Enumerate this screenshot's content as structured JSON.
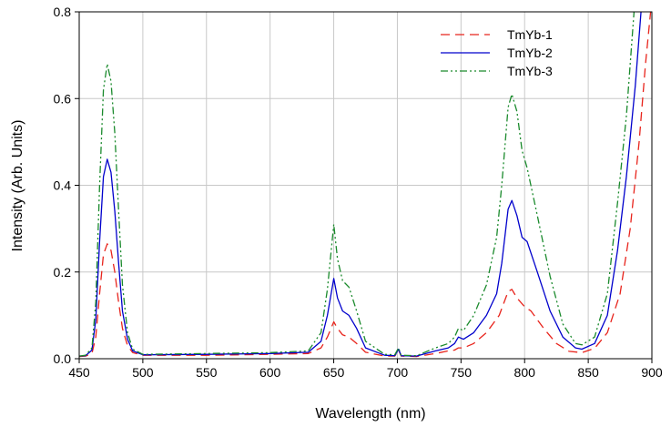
{
  "chart_data": {
    "type": "line",
    "xlabel": "Wavelength (nm)",
    "ylabel": "Intensity (Arb. Units)",
    "xlim": [
      450,
      900
    ],
    "ylim": [
      0,
      0.8
    ],
    "x_ticks": [
      450,
      500,
      550,
      600,
      650,
      700,
      750,
      800,
      850,
      900
    ],
    "y_ticks": [
      0.0,
      0.2,
      0.4,
      0.6,
      0.8
    ],
    "x_tick_labels": [
      "450",
      "500",
      "550",
      "600",
      "650",
      "700",
      "750",
      "800",
      "850",
      "900"
    ],
    "y_tick_labels": [
      "0.0",
      "0.2",
      "0.4",
      "0.6",
      "0.8"
    ],
    "grid": true,
    "legend_position": "top-right",
    "series": [
      {
        "name": "TmYb-1",
        "color": "#e8241c",
        "dash": "dashed",
        "points": [
          [
            450,
            0.005
          ],
          [
            455,
            0.006
          ],
          [
            460,
            0.012
          ],
          [
            463,
            0.05
          ],
          [
            466,
            0.15
          ],
          [
            469,
            0.24
          ],
          [
            472,
            0.265
          ],
          [
            475,
            0.25
          ],
          [
            478,
            0.2
          ],
          [
            481,
            0.13
          ],
          [
            484,
            0.07
          ],
          [
            488,
            0.03
          ],
          [
            492,
            0.014
          ],
          [
            500,
            0.008
          ],
          [
            550,
            0.008
          ],
          [
            600,
            0.01
          ],
          [
            630,
            0.012
          ],
          [
            640,
            0.025
          ],
          [
            645,
            0.05
          ],
          [
            650,
            0.085
          ],
          [
            653,
            0.07
          ],
          [
            657,
            0.055
          ],
          [
            662,
            0.05
          ],
          [
            668,
            0.035
          ],
          [
            675,
            0.015
          ],
          [
            690,
            0.006
          ],
          [
            698,
            0.006
          ],
          [
            701,
            0.02
          ],
          [
            703,
            0.006
          ],
          [
            715,
            0.005
          ],
          [
            730,
            0.012
          ],
          [
            740,
            0.018
          ],
          [
            745,
            0.02
          ],
          [
            748,
            0.025
          ],
          [
            752,
            0.025
          ],
          [
            760,
            0.035
          ],
          [
            770,
            0.06
          ],
          [
            780,
            0.1
          ],
          [
            787,
            0.155
          ],
          [
            790,
            0.16
          ],
          [
            794,
            0.14
          ],
          [
            800,
            0.12
          ],
          [
            805,
            0.11
          ],
          [
            815,
            0.07
          ],
          [
            825,
            0.035
          ],
          [
            835,
            0.017
          ],
          [
            845,
            0.014
          ],
          [
            855,
            0.024
          ],
          [
            865,
            0.06
          ],
          [
            875,
            0.15
          ],
          [
            883,
            0.3
          ],
          [
            890,
            0.5
          ],
          [
            895,
            0.68
          ],
          [
            900,
            0.83
          ]
        ]
      },
      {
        "name": "TmYb-2",
        "color": "#0000cc",
        "dash": "solid",
        "points": [
          [
            450,
            0.006
          ],
          [
            455,
            0.007
          ],
          [
            460,
            0.02
          ],
          [
            463,
            0.09
          ],
          [
            466,
            0.27
          ],
          [
            469,
            0.42
          ],
          [
            472,
            0.46
          ],
          [
            475,
            0.43
          ],
          [
            478,
            0.34
          ],
          [
            481,
            0.22
          ],
          [
            484,
            0.11
          ],
          [
            488,
            0.045
          ],
          [
            492,
            0.018
          ],
          [
            500,
            0.009
          ],
          [
            550,
            0.01
          ],
          [
            600,
            0.012
          ],
          [
            630,
            0.015
          ],
          [
            640,
            0.04
          ],
          [
            645,
            0.1
          ],
          [
            650,
            0.185
          ],
          [
            653,
            0.14
          ],
          [
            657,
            0.11
          ],
          [
            662,
            0.1
          ],
          [
            668,
            0.07
          ],
          [
            675,
            0.025
          ],
          [
            690,
            0.008
          ],
          [
            698,
            0.007
          ],
          [
            701,
            0.022
          ],
          [
            703,
            0.007
          ],
          [
            715,
            0.006
          ],
          [
            730,
            0.018
          ],
          [
            740,
            0.025
          ],
          [
            745,
            0.035
          ],
          [
            748,
            0.05
          ],
          [
            752,
            0.045
          ],
          [
            760,
            0.06
          ],
          [
            770,
            0.1
          ],
          [
            778,
            0.15
          ],
          [
            782,
            0.22
          ],
          [
            787,
            0.345
          ],
          [
            790,
            0.365
          ],
          [
            794,
            0.33
          ],
          [
            798,
            0.28
          ],
          [
            802,
            0.27
          ],
          [
            810,
            0.2
          ],
          [
            820,
            0.11
          ],
          [
            830,
            0.05
          ],
          [
            840,
            0.025
          ],
          [
            845,
            0.022
          ],
          [
            855,
            0.035
          ],
          [
            865,
            0.1
          ],
          [
            873,
            0.25
          ],
          [
            880,
            0.42
          ],
          [
            887,
            0.63
          ],
          [
            892,
            0.82
          ]
        ]
      },
      {
        "name": "TmYb-3",
        "color": "#1a8a2c",
        "dash": "dashdotdot",
        "points": [
          [
            450,
            0.006
          ],
          [
            455,
            0.008
          ],
          [
            460,
            0.025
          ],
          [
            463,
            0.13
          ],
          [
            466,
            0.4
          ],
          [
            469,
            0.62
          ],
          [
            472,
            0.68
          ],
          [
            475,
            0.64
          ],
          [
            478,
            0.52
          ],
          [
            481,
            0.34
          ],
          [
            484,
            0.17
          ],
          [
            488,
            0.06
          ],
          [
            492,
            0.022
          ],
          [
            500,
            0.01
          ],
          [
            550,
            0.012
          ],
          [
            600,
            0.014
          ],
          [
            630,
            0.018
          ],
          [
            640,
            0.06
          ],
          [
            645,
            0.16
          ],
          [
            650,
            0.31
          ],
          [
            653,
            0.23
          ],
          [
            657,
            0.18
          ],
          [
            662,
            0.165
          ],
          [
            668,
            0.11
          ],
          [
            675,
            0.04
          ],
          [
            690,
            0.01
          ],
          [
            698,
            0.009
          ],
          [
            701,
            0.025
          ],
          [
            703,
            0.008
          ],
          [
            715,
            0.007
          ],
          [
            730,
            0.025
          ],
          [
            740,
            0.035
          ],
          [
            745,
            0.05
          ],
          [
            748,
            0.07
          ],
          [
            752,
            0.065
          ],
          [
            760,
            0.1
          ],
          [
            770,
            0.17
          ],
          [
            778,
            0.28
          ],
          [
            782,
            0.4
          ],
          [
            787,
            0.58
          ],
          [
            790,
            0.61
          ],
          [
            794,
            0.57
          ],
          [
            798,
            0.48
          ],
          [
            802,
            0.44
          ],
          [
            810,
            0.33
          ],
          [
            820,
            0.19
          ],
          [
            830,
            0.08
          ],
          [
            840,
            0.035
          ],
          [
            845,
            0.032
          ],
          [
            855,
            0.05
          ],
          [
            865,
            0.15
          ],
          [
            873,
            0.36
          ],
          [
            880,
            0.56
          ],
          [
            886,
            0.8
          ]
        ]
      }
    ]
  }
}
